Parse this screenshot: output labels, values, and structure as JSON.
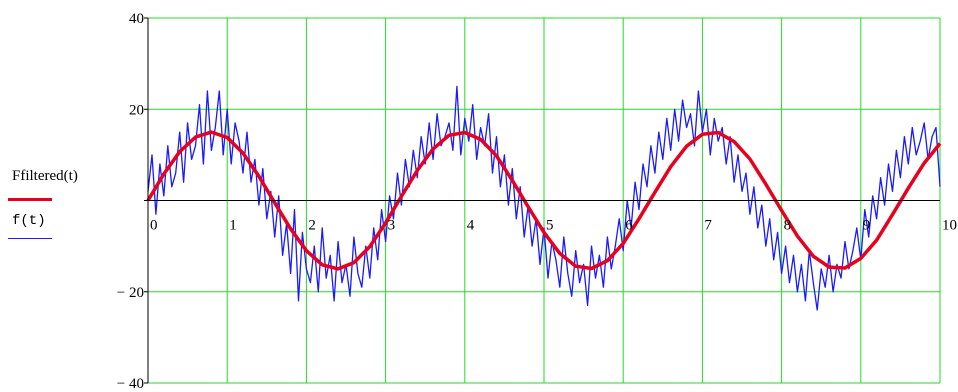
{
  "chart_data": {
    "type": "line",
    "title": "",
    "xlabel": "",
    "ylabel": "",
    "xlim": [
      0,
      10
    ],
    "ylim": [
      -40,
      40
    ],
    "x_ticks": [
      0,
      1,
      2,
      3,
      4,
      5,
      6,
      7,
      8,
      9,
      10
    ],
    "x_tick_labels": [
      "0",
      "1",
      "2",
      "3",
      "4",
      "5",
      "6",
      "7",
      "8",
      "9",
      "10"
    ],
    "y_ticks": [
      -40,
      -20,
      0,
      20,
      40
    ],
    "y_tick_labels": [
      "− 40",
      "− 20",
      "0",
      "20",
      "40"
    ],
    "grid": true,
    "colors": {
      "grid": "#22dd22",
      "filtered": "#e8001c",
      "noisy": "#1a1aff",
      "axis": "#000000"
    },
    "series": [
      {
        "name": "Ffiltered(t)",
        "color": "#e8001c",
        "style": "thick",
        "x": [
          0,
          0.2,
          0.4,
          0.6,
          0.8,
          1.0,
          1.2,
          1.4,
          1.6,
          1.8,
          2.0,
          2.2,
          2.4,
          2.6,
          2.8,
          3.0,
          3.2,
          3.4,
          3.6,
          3.8,
          4.0,
          4.2,
          4.4,
          4.6,
          4.8,
          5.0,
          5.2,
          5.4,
          5.6,
          5.8,
          6.0,
          6.2,
          6.4,
          6.6,
          6.8,
          7.0,
          7.2,
          7.4,
          7.6,
          7.8,
          8.0,
          8.2,
          8.4,
          8.6,
          8.8,
          9.0,
          9.2,
          9.4,
          9.6,
          9.8,
          10.0
        ],
        "y": [
          0,
          5.8,
          10.7,
          13.9,
          15.0,
          13.8,
          10.4,
          5.3,
          -0.5,
          -6.2,
          -11.0,
          -14.1,
          -15.0,
          -13.6,
          -10.1,
          -4.9,
          0.9,
          6.6,
          11.3,
          14.3,
          14.9,
          13.4,
          9.8,
          4.4,
          -1.4,
          -7.0,
          -11.6,
          -14.4,
          -14.9,
          -13.2,
          -9.4,
          -4.0,
          1.8,
          7.4,
          11.9,
          14.5,
          14.9,
          12.9,
          9.1,
          3.6,
          -2.2,
          -7.8,
          -12.2,
          -14.6,
          -14.8,
          -12.7,
          -8.7,
          -3.1,
          2.7,
          8.2,
          12.5
        ]
      },
      {
        "name": "f(t)",
        "color": "#1a1aff",
        "style": "thin",
        "x": [
          0,
          0.05,
          0.1,
          0.15,
          0.2,
          0.25,
          0.3,
          0.35,
          0.4,
          0.45,
          0.5,
          0.55,
          0.6,
          0.65,
          0.7,
          0.75,
          0.8,
          0.85,
          0.9,
          0.95,
          1.0,
          1.05,
          1.1,
          1.15,
          1.2,
          1.25,
          1.3,
          1.35,
          1.4,
          1.45,
          1.5,
          1.55,
          1.6,
          1.65,
          1.7,
          1.75,
          1.8,
          1.85,
          1.9,
          1.95,
          2.0,
          2.05,
          2.1,
          2.15,
          2.2,
          2.25,
          2.3,
          2.35,
          2.4,
          2.45,
          2.5,
          2.55,
          2.6,
          2.65,
          2.7,
          2.75,
          2.8,
          2.85,
          2.9,
          2.95,
          3.0,
          3.05,
          3.1,
          3.15,
          3.2,
          3.25,
          3.3,
          3.35,
          3.4,
          3.45,
          3.5,
          3.55,
          3.6,
          3.65,
          3.7,
          3.75,
          3.8,
          3.85,
          3.9,
          3.95,
          4.0,
          4.05,
          4.1,
          4.15,
          4.2,
          4.25,
          4.3,
          4.35,
          4.4,
          4.45,
          4.5,
          4.55,
          4.6,
          4.65,
          4.7,
          4.75,
          4.8,
          4.85,
          4.9,
          4.95,
          5.0,
          5.05,
          5.1,
          5.15,
          5.2,
          5.25,
          5.3,
          5.35,
          5.4,
          5.45,
          5.5,
          5.55,
          5.6,
          5.65,
          5.7,
          5.75,
          5.8,
          5.85,
          5.9,
          5.95,
          6.0,
          6.05,
          6.1,
          6.15,
          6.2,
          6.25,
          6.3,
          6.35,
          6.4,
          6.45,
          6.5,
          6.55,
          6.6,
          6.65,
          6.7,
          6.75,
          6.8,
          6.85,
          6.9,
          6.95,
          7.0,
          7.05,
          7.1,
          7.15,
          7.2,
          7.25,
          7.3,
          7.35,
          7.4,
          7.45,
          7.5,
          7.55,
          7.6,
          7.65,
          7.7,
          7.75,
          7.8,
          7.85,
          7.9,
          7.95,
          8.0,
          8.05,
          8.1,
          8.15,
          8.2,
          8.25,
          8.3,
          8.35,
          8.4,
          8.45,
          8.5,
          8.55,
          8.6,
          8.65,
          8.7,
          8.75,
          8.8,
          8.85,
          8.9,
          8.95,
          9.0,
          9.05,
          9.1,
          9.15,
          9.2,
          9.25,
          9.3,
          9.35,
          9.4,
          9.45,
          9.5,
          9.55,
          9.6,
          9.65,
          9.7,
          9.75,
          9.8,
          9.85,
          9.9,
          9.95,
          10.0
        ],
        "y": [
          2,
          10,
          -3,
          8,
          1,
          12,
          3,
          6,
          15,
          4,
          17,
          9,
          12,
          21,
          8,
          24,
          11,
          16,
          24,
          10,
          20,
          8,
          17,
          13,
          6,
          15,
          4,
          9,
          -1,
          7,
          -4,
          2,
          -8,
          1,
          -12,
          -5,
          -16,
          -2,
          -22,
          -7,
          -15,
          -18,
          -10,
          -20,
          -6,
          -17,
          -12,
          -22,
          -9,
          -18,
          -14,
          -21,
          -8,
          -16,
          -19,
          -10,
          -17,
          -6,
          -13,
          -2,
          -9,
          1,
          -4,
          6,
          -1,
          9,
          3,
          11,
          5,
          14,
          8,
          17,
          9,
          19,
          12,
          14,
          17,
          11,
          25,
          10,
          18,
          13,
          21,
          9,
          16,
          12,
          19,
          6,
          14,
          3,
          10,
          -1,
          7,
          -4,
          3,
          -8,
          -1,
          -10,
          -4,
          -14,
          -6,
          -17,
          -9,
          -13,
          -19,
          -8,
          -16,
          -21,
          -11,
          -18,
          -14,
          -23,
          -10,
          -17,
          -12,
          -19,
          -8,
          -15,
          -10,
          -4,
          -11,
          0,
          -6,
          4,
          -2,
          8,
          3,
          12,
          6,
          15,
          9,
          18,
          11,
          20,
          13,
          22,
          16,
          19,
          12,
          24,
          15,
          20,
          10,
          18,
          13,
          16,
          8,
          14,
          4,
          10,
          2,
          6,
          -3,
          3,
          -6,
          -1,
          -10,
          -4,
          -13,
          -7,
          -16,
          -10,
          -18,
          -12,
          -20,
          -14,
          -22,
          -11,
          -18,
          -24,
          -15,
          -19,
          -12,
          -20,
          -14,
          -17,
          -9,
          -15,
          -11,
          -6,
          -13,
          -2,
          -8,
          1,
          -4,
          5,
          -1,
          8,
          2,
          11,
          5,
          14,
          8,
          16,
          10,
          13,
          17,
          9,
          14,
          16,
          3
        ]
      }
    ]
  },
  "legend": [
    {
      "label": "Ffiltered(t)",
      "color": "#e8001c"
    },
    {
      "label": "f(t)",
      "color": "#1a1aff"
    }
  ]
}
